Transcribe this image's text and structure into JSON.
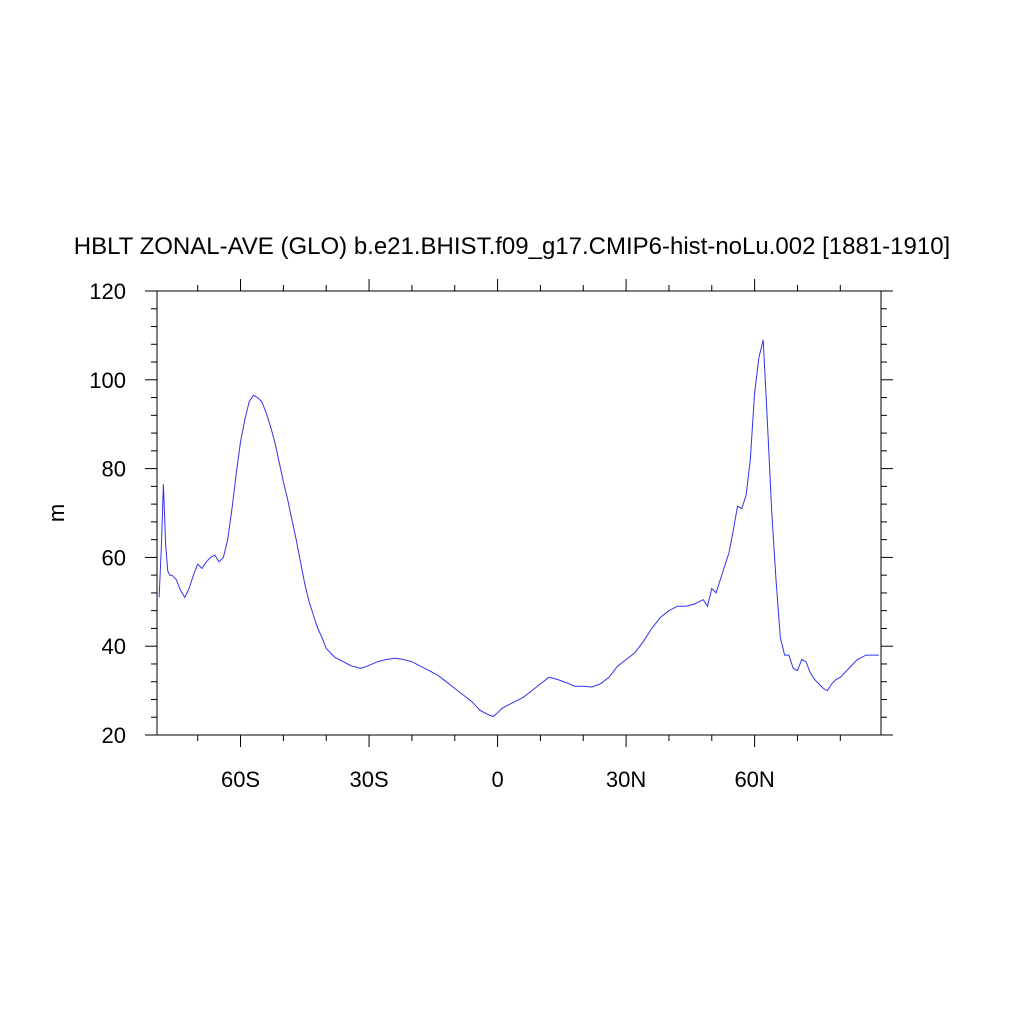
{
  "chart_data": {
    "type": "line",
    "title": "HBLT ZONAL-AVE (GLO) b.e21.BHIST.f09_g17.CMIP6-hist-noLu.002 [1881-1910]",
    "xlabel": "",
    "ylabel": "m",
    "xlim": [
      -79.5,
      89.5
    ],
    "ylim": [
      20,
      120
    ],
    "x_ticks": [
      -60,
      -30,
      0,
      30,
      60
    ],
    "x_tick_labels": [
      "60S",
      "30S",
      "0",
      "30N",
      "60N"
    ],
    "y_ticks": [
      20,
      40,
      60,
      80,
      100,
      120
    ],
    "y_tick_labels": [
      "20",
      "40",
      "60",
      "80",
      "100",
      "120"
    ],
    "grid": false,
    "line_color": "#3333ee",
    "series": [
      {
        "x": [
          -79,
          -78.5,
          -78,
          -77.5,
          -77,
          -76.5,
          -76,
          -75,
          -74,
          -73,
          -72,
          -71,
          -70,
          -69,
          -68,
          -67,
          -66,
          -65,
          -64,
          -63,
          -62,
          -61,
          -60,
          -59,
          -58,
          -57,
          -56,
          -55,
          -54,
          -53,
          -52,
          -51,
          -50,
          -49,
          -48,
          -47,
          -46,
          -45,
          -44,
          -43,
          -42,
          -41,
          -40,
          -39,
          -38,
          -37,
          -36,
          -35,
          -34,
          -33,
          -32,
          -31,
          -30,
          -28,
          -26,
          -24,
          -22,
          -20,
          -18,
          -16,
          -14,
          -12,
          -10,
          -8,
          -6,
          -4,
          -2,
          -1,
          0,
          1,
          2,
          4,
          6,
          8,
          10,
          12,
          14,
          16,
          18,
          20,
          22,
          24,
          26,
          28,
          30,
          32,
          34,
          36,
          38,
          40,
          42,
          44,
          46,
          48,
          49,
          50,
          51,
          52,
          53,
          54,
          55,
          56,
          57,
          58,
          59,
          60,
          61,
          62,
          63,
          64,
          65,
          66,
          67,
          68,
          69,
          70,
          71,
          72,
          73,
          74,
          75,
          76,
          77,
          78,
          79,
          80,
          82,
          84,
          86,
          89
        ],
        "y": [
          51,
          62,
          76.5,
          63,
          57,
          56,
          56,
          55,
          52.5,
          51,
          53,
          56,
          58.5,
          57.5,
          59,
          60,
          60.5,
          59,
          60,
          64,
          71,
          79,
          86,
          91,
          95,
          96.5,
          96,
          95,
          92.5,
          89.5,
          86,
          81.5,
          77,
          73,
          68.5,
          64,
          59,
          54,
          50,
          47,
          44,
          42,
          39.5,
          38.5,
          37.5,
          37,
          36.5,
          36,
          35.5,
          35.3,
          35,
          35.3,
          35.7,
          36.5,
          37,
          37.3,
          37,
          36.5,
          35.5,
          34.5,
          33.5,
          32,
          30.5,
          29,
          27.5,
          25.5,
          24.5,
          24.2,
          25,
          26,
          26.5,
          27.5,
          28.5,
          30,
          31.5,
          33,
          32.5,
          31.8,
          31,
          31,
          30.8,
          31.5,
          33,
          35.5,
          37,
          38.5,
          41,
          44,
          46.5,
          48,
          49,
          49,
          49.5,
          50.5,
          49,
          53,
          52,
          55,
          58,
          61,
          66,
          71.5,
          71,
          74,
          82,
          97,
          105,
          109,
          90,
          70,
          55,
          42,
          38,
          38,
          35,
          34.5,
          37,
          36.5,
          34,
          32.5,
          31.5,
          30.5,
          30,
          31.5,
          32.5,
          33,
          35,
          37,
          38,
          38
        ]
      }
    ]
  }
}
